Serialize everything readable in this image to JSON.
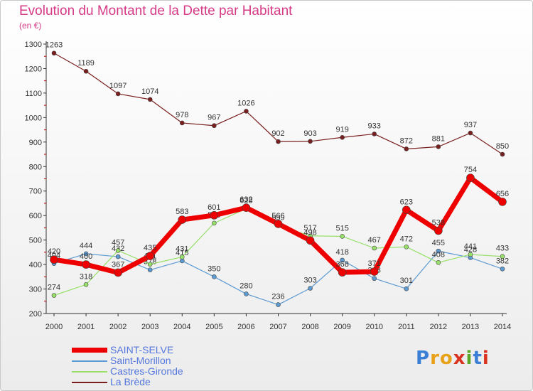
{
  "header": {
    "title": "Evolution du Montant de la Dette par Habitant",
    "subtitle": "(en €)"
  },
  "brand": {
    "logo_text": "Proxiti",
    "colors": [
      "#3a7fd5",
      "#e8a21a",
      "#e8a21a",
      "#d8331e",
      "#5aa626",
      "#3a7fd5",
      "#d8331e"
    ]
  },
  "chart_data": {
    "type": "line",
    "title": "Evolution du Montant de la Dette par Habitant",
    "subtitle": "(en €)",
    "xlabel": "",
    "ylabel": "",
    "ylim": [
      200,
      1300
    ],
    "yticks": [
      200,
      300,
      400,
      500,
      600,
      700,
      800,
      900,
      1000,
      1100,
      1200,
      1300
    ],
    "x": [
      "2000",
      "2001",
      "2002",
      "2003",
      "2004",
      "2005",
      "2006",
      "2007",
      "2008",
      "2009",
      "2010",
      "2011",
      "2012",
      "2013",
      "2014"
    ],
    "grid": false,
    "legend_position": "bottom-left",
    "series": [
      {
        "name": "La Brède",
        "color": "#7a1f1f",
        "width": 1.2,
        "values": [
          1263,
          1189,
          1097,
          1074,
          978,
          967,
          1026,
          902,
          903,
          919,
          933,
          872,
          881,
          937,
          850
        ]
      },
      {
        "name": "Saint-Morillon",
        "color": "#5d9bd3",
        "width": 1.2,
        "values": [
          404,
          444,
          432,
          378,
          415,
          350,
          280,
          236,
          303,
          418,
          343,
          301,
          455,
          428,
          382
        ]
      },
      {
        "name": "Castres-Gironde",
        "color": "#98e06a",
        "width": 1.2,
        "values": [
          274,
          318,
          457,
          401,
          431,
          569,
          628,
          559,
          517,
          515,
          467,
          472,
          408,
          441,
          433
        ]
      },
      {
        "name": "SAINT-SELVE",
        "color": "#ee0000",
        "width": 7,
        "values": [
          420,
          400,
          367,
          435,
          583,
          601,
          632,
          566,
          498,
          368,
          371,
          623,
          538,
          754,
          656
        ]
      }
    ],
    "legend_order": [
      "SAINT-SELVE",
      "Saint-Morillon",
      "Castres-Gironde",
      "La Brède"
    ]
  }
}
